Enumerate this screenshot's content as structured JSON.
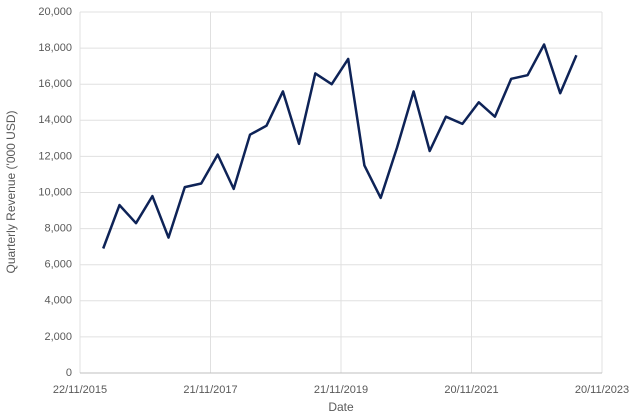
{
  "chart_data": {
    "type": "line",
    "x_label": "Date",
    "y_label": "Quarterly Revenue ('000 USD)",
    "x": [
      "2016-03-31",
      "2016-06-30",
      "2016-09-30",
      "2016-12-31",
      "2017-03-31",
      "2017-06-30",
      "2017-09-30",
      "2017-12-31",
      "2018-03-31",
      "2018-06-30",
      "2018-09-30",
      "2018-12-31",
      "2019-03-31",
      "2019-06-30",
      "2019-09-30",
      "2019-12-31",
      "2020-03-31",
      "2020-06-30",
      "2020-09-30",
      "2020-12-31",
      "2021-03-31",
      "2021-06-30",
      "2021-09-30",
      "2021-12-31",
      "2022-03-31",
      "2022-06-30",
      "2022-09-30",
      "2022-12-31",
      "2023-03-31",
      "2023-06-30"
    ],
    "values": [
      6900,
      9300,
      8300,
      9800,
      7500,
      10300,
      10500,
      12100,
      10200,
      13200,
      13700,
      15600,
      12700,
      16600,
      16000,
      17400,
      11500,
      9700,
      12500,
      15600,
      12300,
      14200,
      13800,
      15000,
      14200,
      16300,
      16500,
      18200,
      15500,
      17600
    ],
    "color": "#0e2357",
    "xlim": [
      "2015-11-22",
      "2023-11-20"
    ],
    "xticks": [
      {
        "value": "2015-11-22",
        "label": "22/11/2015"
      },
      {
        "value": "2017-11-21",
        "label": "21/11/2017"
      },
      {
        "value": "2019-11-21",
        "label": "21/11/2019"
      },
      {
        "value": "2021-11-20",
        "label": "20/11/2021"
      },
      {
        "value": "2023-11-20",
        "label": "20/11/2023"
      }
    ],
    "ylim": [
      0,
      20000
    ],
    "yticks": [
      0,
      {
        "value": 2000,
        "label": "2,000"
      },
      {
        "value": 4000,
        "label": "4,000"
      },
      {
        "value": 6000,
        "label": "6,000"
      },
      {
        "value": 8000,
        "label": "8,000"
      },
      {
        "value": 10000,
        "label": "10,000"
      },
      {
        "value": 12000,
        "label": "12,000"
      },
      {
        "value": 14000,
        "label": "14,000"
      },
      {
        "value": 16000,
        "label": "16,000"
      },
      {
        "value": 18000,
        "label": "18,000"
      },
      {
        "value": 20000,
        "label": "20,000"
      }
    ],
    "grid": true
  }
}
